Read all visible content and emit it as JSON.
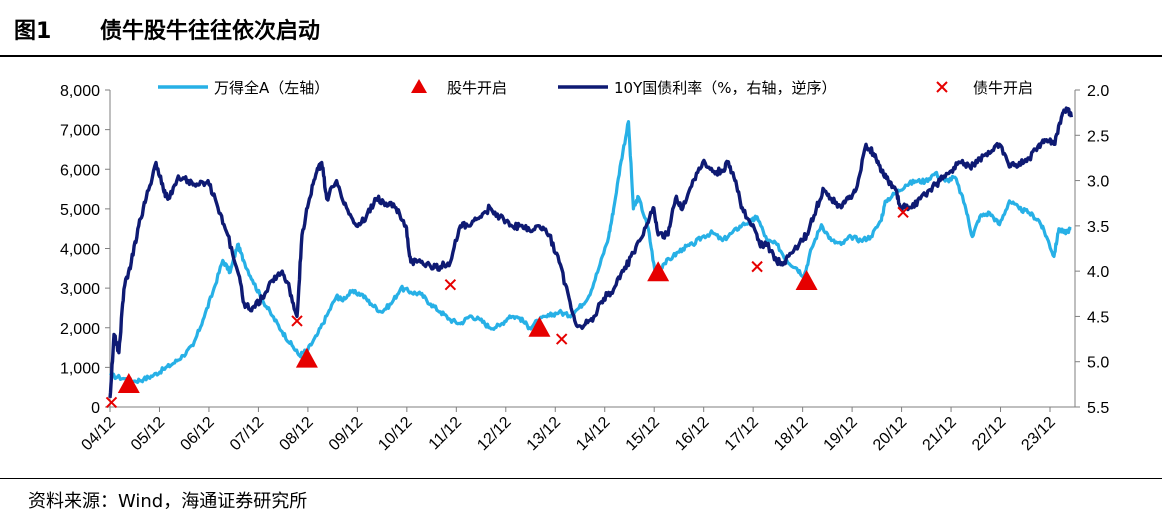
{
  "title": {
    "number": "图1",
    "text": "债牛股牛往往依次启动"
  },
  "source": "资料来源：Wind，海通证券研究所",
  "colors": {
    "equity": "#27b0e6",
    "bond": "#0e1a73",
    "marker": "#e60000"
  },
  "chart_data": {
    "type": "line",
    "x_tick_labels": [
      "04/12",
      "05/12",
      "06/12",
      "07/12",
      "08/12",
      "09/12",
      "10/12",
      "11/12",
      "12/12",
      "13/12",
      "14/12",
      "15/12",
      "16/12",
      "17/12",
      "18/12",
      "19/12",
      "20/12",
      "21/12",
      "22/12",
      "23/12"
    ],
    "y_left": {
      "ylim": [
        0,
        8000
      ],
      "ticks": [
        "0",
        "1,000",
        "2,000",
        "3,000",
        "4,000",
        "5,000",
        "6,000",
        "7,000",
        "8,000"
      ]
    },
    "y_right": {
      "ylim": [
        2.0,
        5.5
      ],
      "inverted": true,
      "ticks": [
        "2.0",
        "2.5",
        "3.0",
        "3.5",
        "4.0",
        "4.5",
        "5.0",
        "5.5"
      ]
    },
    "legend": [
      "万得全A（左轴）",
      "股牛开启",
      "10Y国债利率（%，右轴，逆序）",
      "债牛开启"
    ],
    "series": [
      {
        "name": "万得全A（左轴）",
        "axis": "left",
        "points": [
          [
            2004.92,
            800
          ],
          [
            2005.2,
            720
          ],
          [
            2005.4,
            650
          ],
          [
            2005.6,
            700
          ],
          [
            2005.8,
            800
          ],
          [
            2006.0,
            950
          ],
          [
            2006.2,
            1100
          ],
          [
            2006.4,
            1300
          ],
          [
            2006.6,
            1550
          ],
          [
            2006.8,
            2200
          ],
          [
            2007.0,
            2900
          ],
          [
            2007.2,
            3700
          ],
          [
            2007.35,
            3400
          ],
          [
            2007.5,
            4100
          ],
          [
            2007.62,
            3700
          ],
          [
            2007.8,
            3200
          ],
          [
            2008.0,
            2700
          ],
          [
            2008.2,
            2300
          ],
          [
            2008.4,
            1900
          ],
          [
            2008.6,
            1550
          ],
          [
            2008.75,
            1300
          ],
          [
            2008.92,
            1450
          ],
          [
            2009.1,
            1800
          ],
          [
            2009.3,
            2300
          ],
          [
            2009.5,
            2800
          ],
          [
            2009.6,
            2700
          ],
          [
            2009.8,
            2900
          ],
          [
            2010.0,
            2850
          ],
          [
            2010.2,
            2600
          ],
          [
            2010.4,
            2400
          ],
          [
            2010.6,
            2600
          ],
          [
            2010.8,
            3000
          ],
          [
            2011.0,
            2900
          ],
          [
            2011.2,
            2850
          ],
          [
            2011.4,
            2600
          ],
          [
            2011.6,
            2400
          ],
          [
            2011.8,
            2200
          ],
          [
            2012.0,
            2100
          ],
          [
            2012.2,
            2300
          ],
          [
            2012.4,
            2200
          ],
          [
            2012.6,
            2000
          ],
          [
            2012.8,
            2050
          ],
          [
            2013.0,
            2300
          ],
          [
            2013.2,
            2250
          ],
          [
            2013.4,
            2000
          ],
          [
            2013.6,
            2200
          ],
          [
            2013.8,
            2300
          ],
          [
            2014.0,
            2400
          ],
          [
            2014.2,
            2300
          ],
          [
            2014.4,
            2500
          ],
          [
            2014.6,
            2800
          ],
          [
            2014.8,
            3500
          ],
          [
            2015.0,
            4300
          ],
          [
            2015.1,
            5000
          ],
          [
            2015.25,
            6200
          ],
          [
            2015.4,
            7200
          ],
          [
            2015.5,
            5000
          ],
          [
            2015.6,
            5300
          ],
          [
            2015.8,
            4500
          ],
          [
            2015.95,
            3300
          ],
          [
            2016.1,
            3600
          ],
          [
            2016.3,
            3800
          ],
          [
            2016.5,
            4000
          ],
          [
            2016.7,
            4100
          ],
          [
            2016.9,
            4300
          ],
          [
            2017.1,
            4400
          ],
          [
            2017.3,
            4200
          ],
          [
            2017.5,
            4400
          ],
          [
            2017.7,
            4600
          ],
          [
            2017.9,
            4700
          ],
          [
            2018.0,
            4800
          ],
          [
            2018.2,
            4200
          ],
          [
            2018.4,
            4100
          ],
          [
            2018.6,
            3700
          ],
          [
            2018.8,
            3500
          ],
          [
            2018.95,
            3300
          ],
          [
            2019.1,
            4000
          ],
          [
            2019.3,
            4600
          ],
          [
            2019.5,
            4200
          ],
          [
            2019.7,
            4100
          ],
          [
            2019.9,
            4300
          ],
          [
            2020.1,
            4200
          ],
          [
            2020.3,
            4300
          ],
          [
            2020.5,
            4700
          ],
          [
            2020.6,
            5200
          ],
          [
            2020.8,
            5400
          ],
          [
            2021.0,
            5600
          ],
          [
            2021.2,
            5700
          ],
          [
            2021.4,
            5700
          ],
          [
            2021.6,
            5900
          ],
          [
            2021.8,
            5700
          ],
          [
            2022.0,
            5800
          ],
          [
            2022.2,
            5100
          ],
          [
            2022.35,
            4300
          ],
          [
            2022.5,
            4800
          ],
          [
            2022.7,
            4900
          ],
          [
            2022.9,
            4600
          ],
          [
            2023.1,
            5200
          ],
          [
            2023.3,
            5000
          ],
          [
            2023.5,
            4900
          ],
          [
            2023.7,
            4700
          ],
          [
            2023.85,
            4300
          ],
          [
            2024.0,
            3800
          ],
          [
            2024.1,
            4500
          ],
          [
            2024.2,
            4400
          ],
          [
            2024.35,
            4500
          ]
        ]
      },
      {
        "name": "10Y国债利率（%，右轴，逆序）",
        "axis": "right",
        "points": [
          [
            2004.92,
            5.4
          ],
          [
            2005.0,
            4.7
          ],
          [
            2005.1,
            4.9
          ],
          [
            2005.2,
            4.2
          ],
          [
            2005.35,
            3.9
          ],
          [
            2005.5,
            3.5
          ],
          [
            2005.65,
            3.2
          ],
          [
            2005.85,
            2.8
          ],
          [
            2006.0,
            3.1
          ],
          [
            2006.1,
            3.2
          ],
          [
            2006.3,
            2.95
          ],
          [
            2006.5,
            3.0
          ],
          [
            2006.7,
            3.05
          ],
          [
            2006.9,
            3.0
          ],
          [
            2007.1,
            3.3
          ],
          [
            2007.3,
            3.6
          ],
          [
            2007.5,
            4.0
          ],
          [
            2007.65,
            4.4
          ],
          [
            2007.8,
            4.4
          ],
          [
            2008.0,
            4.3
          ],
          [
            2008.2,
            4.1
          ],
          [
            2008.4,
            4.0
          ],
          [
            2008.55,
            4.2
          ],
          [
            2008.7,
            4.5
          ],
          [
            2008.8,
            3.6
          ],
          [
            2008.95,
            3.2
          ],
          [
            2009.1,
            2.9
          ],
          [
            2009.2,
            2.8
          ],
          [
            2009.3,
            3.2
          ],
          [
            2009.5,
            3.0
          ],
          [
            2009.7,
            3.3
          ],
          [
            2009.9,
            3.5
          ],
          [
            2010.1,
            3.4
          ],
          [
            2010.3,
            3.2
          ],
          [
            2010.5,
            3.25
          ],
          [
            2010.7,
            3.3
          ],
          [
            2010.9,
            3.5
          ],
          [
            2011.0,
            3.9
          ],
          [
            2011.2,
            3.9
          ],
          [
            2011.4,
            3.95
          ],
          [
            2011.6,
            3.95
          ],
          [
            2011.8,
            3.9
          ],
          [
            2012.0,
            3.5
          ],
          [
            2012.2,
            3.5
          ],
          [
            2012.4,
            3.4
          ],
          [
            2012.6,
            3.3
          ],
          [
            2012.8,
            3.4
          ],
          [
            2013.0,
            3.5
          ],
          [
            2013.2,
            3.5
          ],
          [
            2013.4,
            3.55
          ],
          [
            2013.6,
            3.5
          ],
          [
            2013.8,
            3.6
          ],
          [
            2014.0,
            3.9
          ],
          [
            2014.2,
            4.3
          ],
          [
            2014.35,
            4.6
          ],
          [
            2014.5,
            4.6
          ],
          [
            2014.7,
            4.5
          ],
          [
            2014.9,
            4.3
          ],
          [
            2015.1,
            4.2
          ],
          [
            2015.3,
            4.0
          ],
          [
            2015.5,
            3.8
          ],
          [
            2015.7,
            3.6
          ],
          [
            2015.9,
            3.3
          ],
          [
            2016.0,
            3.6
          ],
          [
            2016.2,
            3.6
          ],
          [
            2016.35,
            3.2
          ],
          [
            2016.5,
            3.3
          ],
          [
            2016.7,
            3.0
          ],
          [
            2016.9,
            2.8
          ],
          [
            2017.1,
            2.9
          ],
          [
            2017.3,
            2.9
          ],
          [
            2017.4,
            2.8
          ],
          [
            2017.55,
            3.0
          ],
          [
            2017.7,
            3.3
          ],
          [
            2017.9,
            3.5
          ],
          [
            2018.05,
            3.7
          ],
          [
            2018.2,
            3.7
          ],
          [
            2018.4,
            3.9
          ],
          [
            2018.55,
            3.9
          ],
          [
            2018.7,
            3.8
          ],
          [
            2018.85,
            3.7
          ],
          [
            2019.0,
            3.6
          ],
          [
            2019.2,
            3.3
          ],
          [
            2019.35,
            3.1
          ],
          [
            2019.5,
            3.2
          ],
          [
            2019.7,
            3.3
          ],
          [
            2019.85,
            3.2
          ],
          [
            2020.0,
            3.1
          ],
          [
            2020.2,
            2.6
          ],
          [
            2020.35,
            2.7
          ],
          [
            2020.5,
            2.9
          ],
          [
            2020.65,
            3.0
          ],
          [
            2020.8,
            3.1
          ],
          [
            2020.9,
            3.3
          ],
          [
            2021.1,
            3.3
          ],
          [
            2021.3,
            3.2
          ],
          [
            2021.5,
            3.1
          ],
          [
            2021.7,
            3.0
          ],
          [
            2021.9,
            2.9
          ],
          [
            2022.1,
            2.8
          ],
          [
            2022.3,
            2.85
          ],
          [
            2022.5,
            2.75
          ],
          [
            2022.7,
            2.7
          ],
          [
            2022.9,
            2.6
          ],
          [
            2023.1,
            2.85
          ],
          [
            2023.3,
            2.8
          ],
          [
            2023.5,
            2.75
          ],
          [
            2023.7,
            2.6
          ],
          [
            2023.85,
            2.55
          ],
          [
            2024.0,
            2.6
          ],
          [
            2024.15,
            2.3
          ],
          [
            2024.25,
            2.2
          ],
          [
            2024.35,
            2.3
          ]
        ]
      }
    ],
    "markers": {
      "equity_bull_start": {
        "name": "股牛开启",
        "axis": "left",
        "points": [
          [
            2005.3,
            580
          ],
          [
            2008.9,
            1220
          ],
          [
            2013.6,
            2000
          ],
          [
            2016.0,
            3400
          ],
          [
            2019.0,
            3180
          ]
        ]
      },
      "bond_bull_start": {
        "name": "债牛开启",
        "axis": "right",
        "points": [
          [
            2004.95,
            5.45
          ],
          [
            2008.7,
            4.55
          ],
          [
            2011.8,
            4.15
          ],
          [
            2014.05,
            4.75
          ],
          [
            2018.0,
            3.95
          ],
          [
            2020.95,
            3.35
          ]
        ]
      }
    }
  }
}
